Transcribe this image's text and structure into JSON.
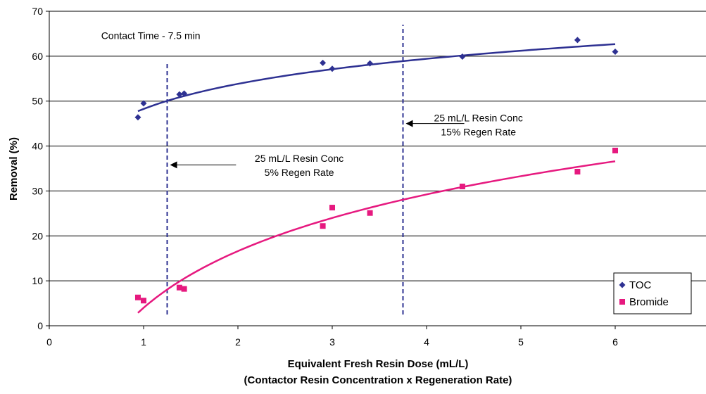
{
  "chart_data": {
    "type": "scatter",
    "title": "",
    "xlabel": "Equivalent Fresh Resin Dose (mL/L)",
    "xlabel2": "(Contactor Resin Concentration x Regeneration Rate)",
    "ylabel": "Removal (%)",
    "xlim": [
      0,
      7
    ],
    "ylim": [
      0,
      70
    ],
    "xticks": [
      "0",
      "1",
      "2",
      "3",
      "4",
      "5",
      "6"
    ],
    "yticks": [
      "0",
      "10",
      "20",
      "30",
      "40",
      "50",
      "60",
      "70"
    ],
    "grid": "horizontal",
    "legend_position": "bottom-right",
    "series": [
      {
        "name": "TOC",
        "color": "#2e3192",
        "marker": "diamond",
        "x": [
          0.94,
          1.0,
          1.38,
          1.43,
          2.9,
          3.0,
          3.4,
          4.38,
          5.6,
          6.0
        ],
        "y": [
          46.4,
          49.5,
          51.5,
          51.7,
          58.5,
          57.2,
          58.4,
          59.9,
          63.6,
          61.0
        ],
        "trend": {
          "type": "log",
          "a": 48.26,
          "b": 8.05,
          "x_from": 0.94,
          "x_to": 6.0
        }
      },
      {
        "name": "Bromide",
        "color": "#e6197f",
        "marker": "square",
        "x": [
          0.94,
          1.0,
          1.38,
          1.43,
          2.9,
          3.0,
          3.4,
          4.38,
          5.6,
          6.0
        ],
        "y": [
          6.3,
          5.6,
          8.5,
          8.2,
          22.2,
          26.3,
          25.1,
          31.0,
          34.3,
          39.0
        ],
        "trend": {
          "type": "log",
          "a": 4.0,
          "b": 18.2,
          "x_from": 0.94,
          "x_to": 6.0
        }
      }
    ],
    "vlines": [
      {
        "x": 1.25,
        "y_from": 2.5,
        "y_to": 58.5,
        "color": "#2e3192",
        "style": "dashed"
      },
      {
        "x": 3.75,
        "y_from": 2.5,
        "y_to": 67.0,
        "color": "#2e3192",
        "style": "dashed"
      }
    ],
    "annotations": [
      {
        "text": "Contact Time - 7.5 min",
        "x": 0.55,
        "y": 63.8
      },
      {
        "lines": [
          "25 mL/L Resin Conc",
          "5% Regen Rate"
        ],
        "x": 2.65,
        "y": 36.5,
        "arrow_from": [
          1.98,
          35.8
        ],
        "arrow_to": [
          1.28,
          35.8
        ]
      },
      {
        "lines": [
          "25 mL/L Resin Conc",
          "15% Regen Rate"
        ],
        "x": 4.55,
        "y": 45.5,
        "arrow_from": [
          4.4,
          45.0
        ],
        "arrow_to": [
          3.78,
          45.0
        ]
      }
    ]
  }
}
